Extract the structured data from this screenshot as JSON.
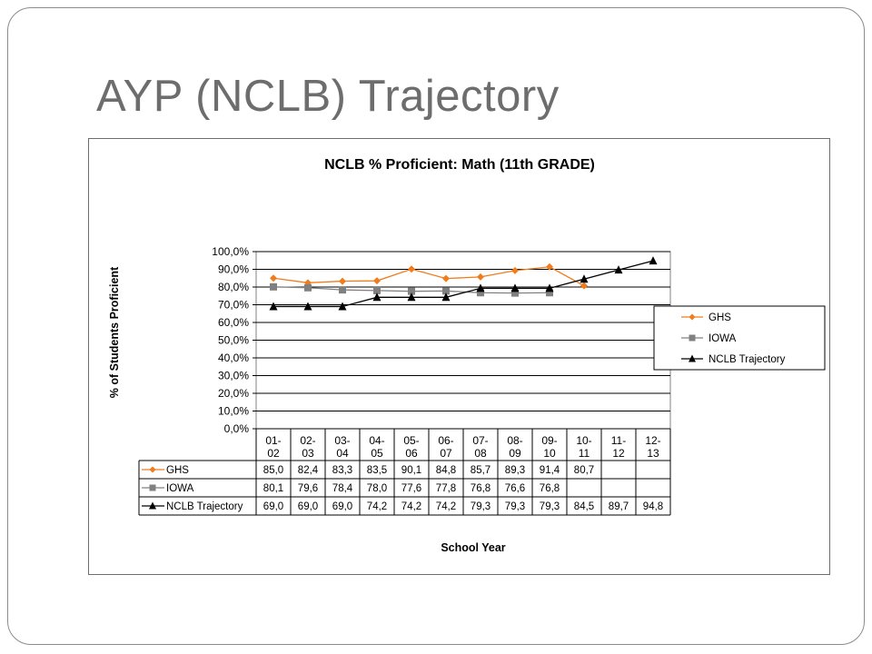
{
  "slide": {
    "title": "AYP (NCLB) Trajectory"
  },
  "chart_data": {
    "type": "line",
    "title": "NCLB % Proficient:  Math (11th GRADE)",
    "ylabel": "% of Students Proficient",
    "xlabel": "School Year",
    "ylim": [
      0,
      100
    ],
    "y_ticks": [
      "0,0%",
      "10,0%",
      "20,0%",
      "30,0%",
      "40,0%",
      "50,0%",
      "60,0%",
      "70,0%",
      "80,0%",
      "90,0%",
      "100,0%"
    ],
    "categories": [
      [
        "01-",
        "02"
      ],
      [
        "02-",
        "03"
      ],
      [
        "03-",
        "04"
      ],
      [
        "04-",
        "05"
      ],
      [
        "05-",
        "06"
      ],
      [
        "06-",
        "07"
      ],
      [
        "07-",
        "08"
      ],
      [
        "08-",
        "09"
      ],
      [
        "09-",
        "10"
      ],
      [
        "10-",
        "11"
      ],
      [
        "11-",
        "12"
      ],
      [
        "12-",
        "13"
      ]
    ],
    "legend_position": "right",
    "grid": true,
    "series": [
      {
        "name": "GHS",
        "color": "#f07c1c",
        "marker": "diamond",
        "values": [
          85.0,
          82.4,
          83.3,
          83.5,
          90.1,
          84.8,
          85.7,
          89.3,
          91.4,
          80.7,
          null,
          null
        ],
        "labels": [
          "85,0",
          "82,4",
          "83,3",
          "83,5",
          "90,1",
          "84,8",
          "85,7",
          "89,3",
          "91,4",
          "80,7",
          "",
          ""
        ]
      },
      {
        "name": "IOWA",
        "color": "#808080",
        "marker": "square",
        "values": [
          80.1,
          79.6,
          78.4,
          78.0,
          77.6,
          77.8,
          76.8,
          76.6,
          76.8,
          null,
          null,
          null
        ],
        "labels": [
          "80,1",
          "79,6",
          "78,4",
          "78,0",
          "77,6",
          "77,8",
          "76,8",
          "76,6",
          "76,8",
          "",
          "",
          ""
        ]
      },
      {
        "name": "NCLB Trajectory",
        "color": "#000000",
        "marker": "triangle",
        "values": [
          69.0,
          69.0,
          69.0,
          74.2,
          74.2,
          74.2,
          79.3,
          79.3,
          79.3,
          84.5,
          89.7,
          94.8
        ],
        "labels": [
          "69,0",
          "69,0",
          "69,0",
          "74,2",
          "74,2",
          "74,2",
          "79,3",
          "79,3",
          "79,3",
          "84,5",
          "89,7",
          "94,8"
        ]
      }
    ]
  }
}
